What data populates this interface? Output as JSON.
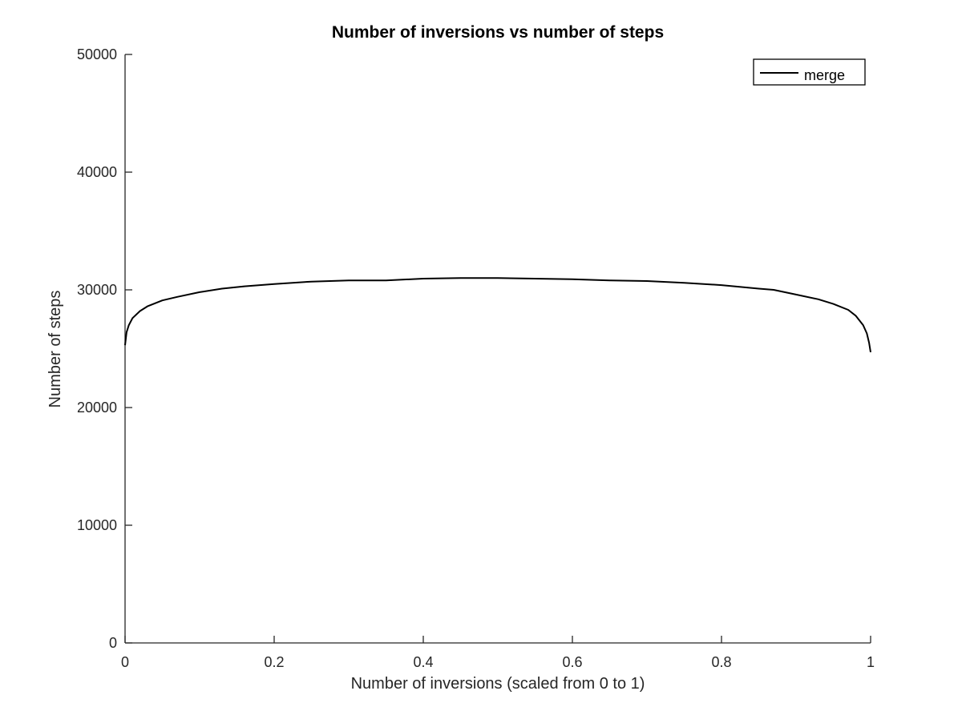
{
  "chart_data": {
    "type": "line",
    "title": "Number of inversions vs number of steps",
    "xlabel": "Number of inversions (scaled from 0 to 1)",
    "ylabel": "Number of steps",
    "xlim": [
      0,
      1
    ],
    "ylim": [
      0,
      50000
    ],
    "xticks": [
      0,
      0.2,
      0.4,
      0.6,
      0.8,
      1
    ],
    "xtick_labels": [
      "0",
      "0.2",
      "0.4",
      "0.6",
      "0.8",
      "1"
    ],
    "yticks": [
      0,
      10000,
      20000,
      30000,
      40000,
      50000
    ],
    "ytick_labels": [
      "0",
      "10000",
      "20000",
      "30000",
      "40000",
      "50000"
    ],
    "grid": false,
    "legend_position": "top-right",
    "series": [
      {
        "name": "merge",
        "color": "#000000",
        "x": [
          0,
          0.002,
          0.005,
          0.01,
          0.02,
          0.03,
          0.05,
          0.07,
          0.1,
          0.13,
          0.16,
          0.2,
          0.25,
          0.3,
          0.35,
          0.4,
          0.45,
          0.5,
          0.55,
          0.6,
          0.65,
          0.7,
          0.75,
          0.8,
          0.85,
          0.87,
          0.9,
          0.93,
          0.95,
          0.97,
          0.98,
          0.99,
          0.995,
          0.998,
          1.0
        ],
        "y": [
          25300,
          26400,
          27000,
          27600,
          28200,
          28600,
          29100,
          29400,
          29800,
          30100,
          30300,
          30500,
          30700,
          30800,
          30800,
          30950,
          31000,
          31000,
          30950,
          30900,
          30800,
          30750,
          30600,
          30400,
          30100,
          30000,
          29600,
          29200,
          28800,
          28300,
          27800,
          27000,
          26300,
          25500,
          24700
        ]
      }
    ]
  }
}
